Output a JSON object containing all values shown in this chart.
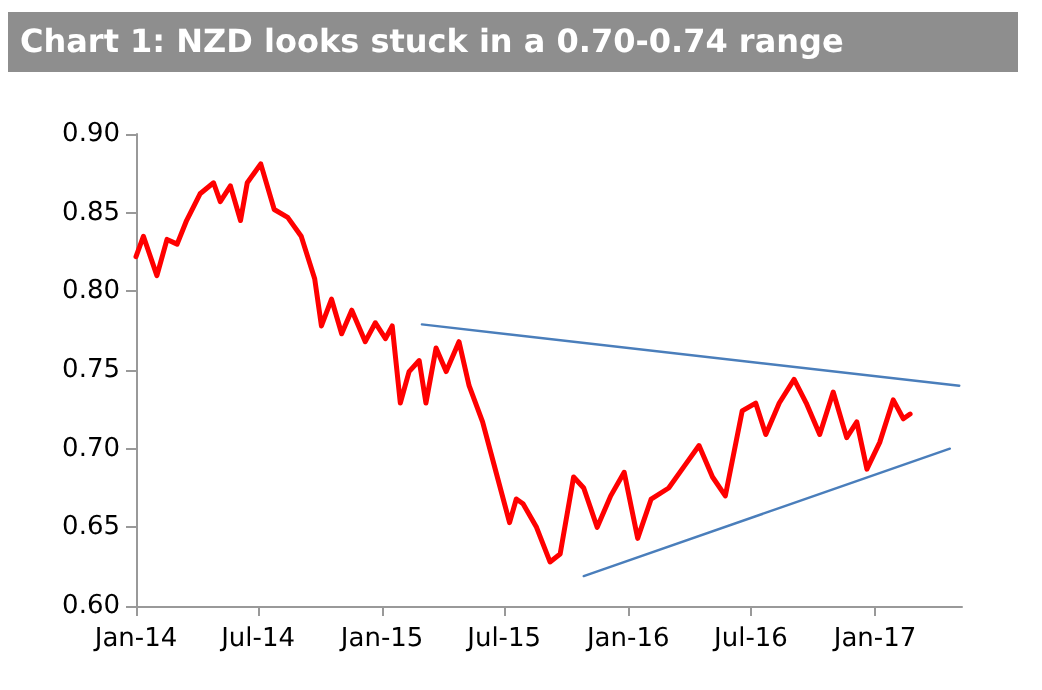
{
  "chart_data": {
    "type": "line",
    "title": "Chart 1: NZD looks stuck in a 0.70-0.74 range",
    "xlim": [
      "2014-01-01",
      "2017-05-10"
    ],
    "xticks": [
      {
        "value": "2014-01-01",
        "label": "Jan-14"
      },
      {
        "value": "2014-07-01",
        "label": "Jul-14"
      },
      {
        "value": "2015-01-01",
        "label": "Jan-15"
      },
      {
        "value": "2015-07-01",
        "label": "Jul-15"
      },
      {
        "value": "2016-01-01",
        "label": "Jan-16"
      },
      {
        "value": "2016-07-01",
        "label": "Jul-16"
      },
      {
        "value": "2017-01-01",
        "label": "Jan-17"
      }
    ],
    "ylim": [
      0.6,
      0.9
    ],
    "yticks": [
      {
        "value": 0.6,
        "label": "0.60"
      },
      {
        "value": 0.65,
        "label": "0.65"
      },
      {
        "value": 0.7,
        "label": "0.70"
      },
      {
        "value": 0.75,
        "label": "0.75"
      },
      {
        "value": 0.8,
        "label": "0.80"
      },
      {
        "value": 0.85,
        "label": "0.85"
      },
      {
        "value": 0.9,
        "label": "0.90"
      }
    ],
    "grid": false,
    "marker": "none",
    "line_style": "solid",
    "series": [
      {
        "color": "#ff0000",
        "x": [
          "2014-01-01",
          "2014-01-12",
          "2014-02-01",
          "2014-02-16",
          "2014-03-03",
          "2014-03-17",
          "2014-04-06",
          "2014-04-26",
          "2014-05-06",
          "2014-05-21",
          "2014-06-05",
          "2014-06-15",
          "2014-07-05",
          "2014-07-25",
          "2014-08-14",
          "2014-09-03",
          "2014-09-23",
          "2014-10-03",
          "2014-10-18",
          "2014-11-02",
          "2014-11-17",
          "2014-12-07",
          "2014-12-22",
          "2015-01-06",
          "2015-01-16",
          "2015-01-28",
          "2015-02-10",
          "2015-02-25",
          "2015-03-07",
          "2015-03-22",
          "2015-04-06",
          "2015-04-25",
          "2015-05-10",
          "2015-05-30",
          "2015-06-19",
          "2015-07-09",
          "2015-07-19",
          "2015-07-29",
          "2015-08-18",
          "2015-09-07",
          "2015-09-22",
          "2015-10-12",
          "2015-10-27",
          "2015-11-16",
          "2015-12-06",
          "2015-12-26",
          "2016-01-15",
          "2016-02-04",
          "2016-03-01",
          "2016-03-26",
          "2016-04-15",
          "2016-05-05",
          "2016-05-24",
          "2016-06-18",
          "2016-07-08",
          "2016-07-23",
          "2016-08-12",
          "2016-09-03",
          "2016-09-21",
          "2016-10-11",
          "2016-10-31",
          "2016-11-20",
          "2016-12-05",
          "2016-12-20",
          "2017-01-08",
          "2017-01-28",
          "2017-02-12",
          "2017-02-22"
        ],
        "values": [
          0.822,
          0.835,
          0.81,
          0.833,
          0.83,
          0.845,
          0.862,
          0.869,
          0.857,
          0.867,
          0.845,
          0.869,
          0.881,
          0.852,
          0.847,
          0.835,
          0.808,
          0.778,
          0.795,
          0.773,
          0.788,
          0.768,
          0.78,
          0.77,
          0.778,
          0.729,
          0.749,
          0.756,
          0.729,
          0.764,
          0.749,
          0.768,
          0.74,
          0.717,
          0.685,
          0.653,
          0.668,
          0.665,
          0.65,
          0.628,
          0.633,
          0.682,
          0.675,
          0.65,
          0.67,
          0.685,
          0.643,
          0.668,
          0.675,
          0.69,
          0.702,
          0.682,
          0.67,
          0.724,
          0.729,
          0.709,
          0.729,
          0.744,
          0.729,
          0.709,
          0.736,
          0.707,
          0.717,
          0.687,
          0.704,
          0.731,
          0.719,
          0.722
        ]
      },
      {
        "color": "#4a7ebb",
        "x": [
          "2015-03-01",
          "2017-05-06"
        ],
        "values": [
          0.779,
          0.74
        ]
      },
      {
        "color": "#4a7ebb",
        "x": [
          "2015-10-27",
          "2017-04-22"
        ],
        "values": [
          0.619,
          0.7
        ]
      }
    ]
  }
}
